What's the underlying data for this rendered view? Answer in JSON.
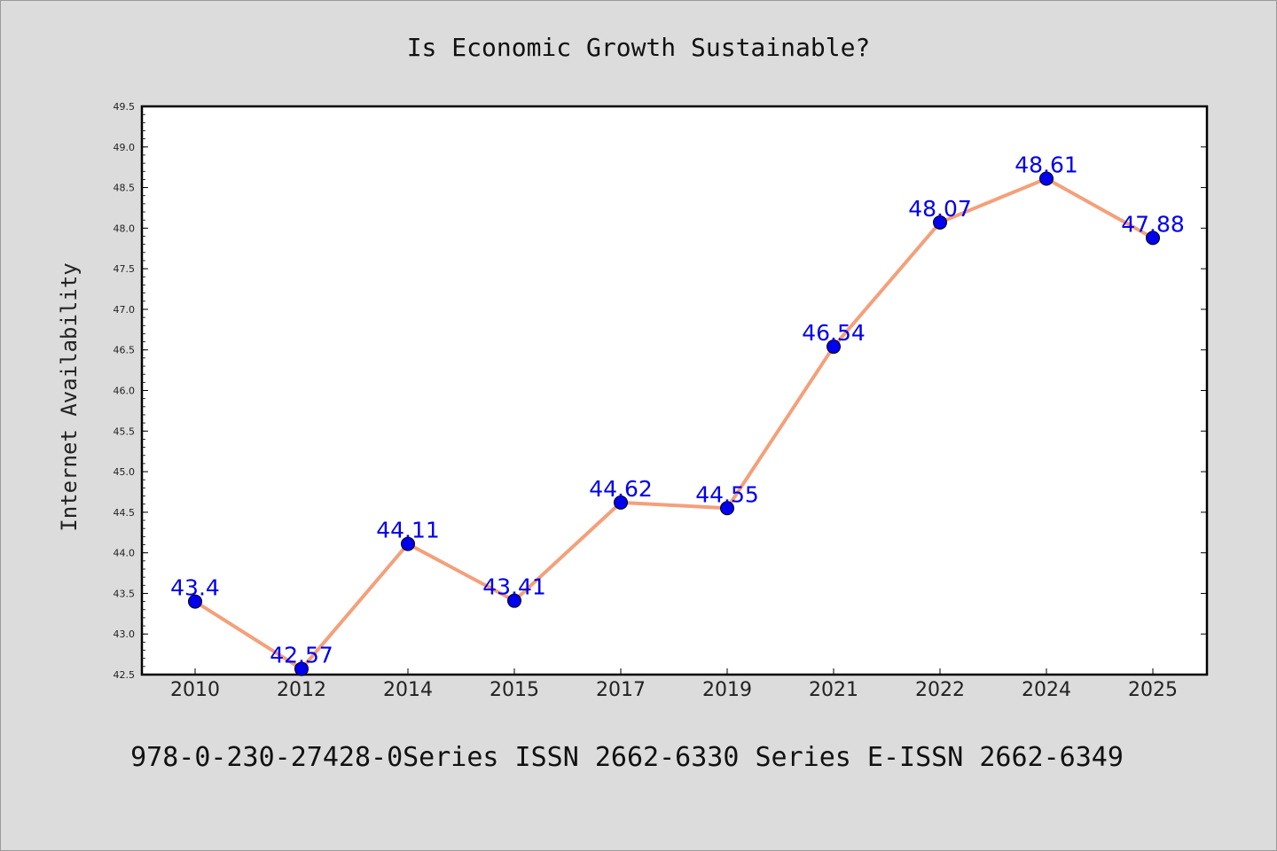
{
  "chart_data": {
    "type": "line",
    "title": "Is Economic Growth Sustainable?",
    "xlabel": "",
    "ylabel": "Internet Availability",
    "categories": [
      "2010",
      "2012",
      "2014",
      "2015",
      "2017",
      "2019",
      "2021",
      "2022",
      "2024",
      "2025"
    ],
    "series": [
      {
        "values": [
          43.4,
          42.57,
          44.11,
          43.41,
          44.62,
          44.55,
          46.54,
          48.07,
          48.61,
          47.88
        ],
        "labels": [
          "43.4",
          "42.57",
          "44.11",
          "43.41",
          "44.62",
          "44.55",
          "46.54",
          "48.07",
          "48.61",
          "47.88"
        ],
        "line_color": "#f4a07a",
        "marker_color": "#0000ee"
      }
    ],
    "ylim": [
      42.5,
      49.5
    ],
    "yticks": [
      "42.5",
      "43.0",
      "43.5",
      "44.0",
      "44.5",
      "45.0",
      "45.5",
      "46.0",
      "46.5",
      "47.0",
      "47.5",
      "48.0",
      "48.5",
      "49.0",
      "49.5"
    ],
    "grid": false,
    "legend": "none"
  },
  "footer": {
    "text": "978-0-230-27428-0Series ISSN 2662-6330 Series E-ISSN 2662-6349"
  }
}
